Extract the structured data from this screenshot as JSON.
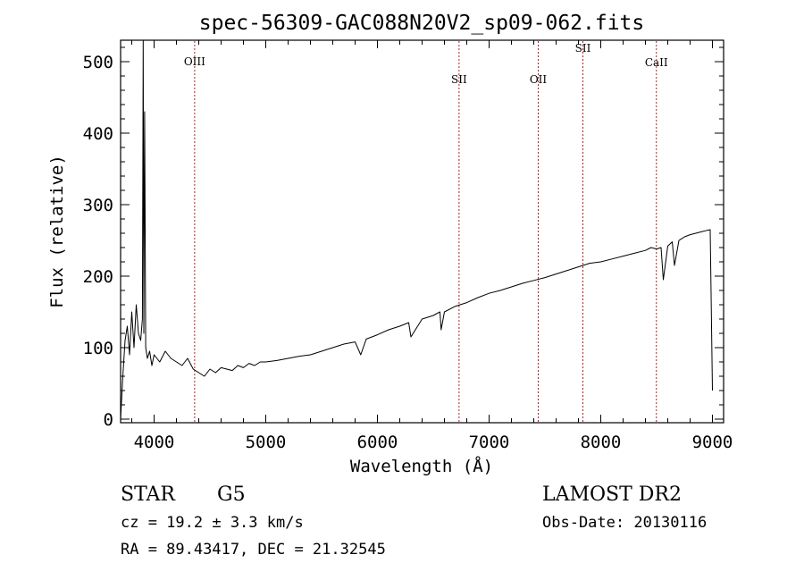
{
  "chart_data": {
    "type": "line",
    "title": "spec-56309-GAC088N20V2_sp09-062.fits",
    "xlabel": "Wavelength (Å)",
    "ylabel": "Flux (relative)",
    "xlim": [
      3700,
      9100
    ],
    "ylim": [
      -5,
      530
    ],
    "x_ticks": [
      4000,
      5000,
      6000,
      7000,
      8000,
      9000
    ],
    "x_tick_labels": [
      "4000",
      "5000",
      "6000",
      "7000",
      "8000",
      "9000"
    ],
    "y_ticks": [
      0,
      100,
      200,
      300,
      400,
      500
    ],
    "y_tick_labels": [
      "0",
      "100",
      "200",
      "300",
      "400",
      "500"
    ],
    "grid": false,
    "series": [
      {
        "x": [
          3700,
          3720,
          3740,
          3760,
          3780,
          3800,
          3820,
          3840,
          3860,
          3880,
          3895,
          3902,
          3908,
          3915,
          3925,
          3940,
          3960,
          3980,
          4000,
          4050,
          4100,
          4150,
          4200,
          4250,
          4300,
          4350,
          4400,
          4450,
          4500,
          4550,
          4600,
          4650,
          4700,
          4750,
          4800,
          4850,
          4900,
          4950,
          5000,
          5100,
          5200,
          5300,
          5400,
          5500,
          5600,
          5700,
          5800,
          5850,
          5900,
          5950,
          6000,
          6100,
          6200,
          6280,
          6300,
          6400,
          6500,
          6560,
          6570,
          6600,
          6700,
          6800,
          6900,
          7000,
          7100,
          7200,
          7300,
          7400,
          7500,
          7600,
          7700,
          7800,
          7900,
          8000,
          8100,
          8200,
          8300,
          8400,
          8450,
          8500,
          8540,
          8560,
          8600,
          8640,
          8660,
          8700,
          8750,
          8800,
          8850,
          8900,
          8950,
          8980,
          9000
        ],
        "y": [
          0,
          60,
          110,
          130,
          90,
          150,
          100,
          160,
          120,
          110,
          140,
          530,
          120,
          430,
          100,
          85,
          95,
          75,
          90,
          80,
          95,
          85,
          80,
          75,
          85,
          70,
          65,
          60,
          70,
          65,
          72,
          70,
          68,
          75,
          72,
          78,
          75,
          80,
          80,
          82,
          85,
          88,
          90,
          95,
          100,
          105,
          108,
          90,
          112,
          115,
          118,
          125,
          130,
          135,
          115,
          140,
          145,
          150,
          125,
          150,
          158,
          163,
          170,
          176,
          180,
          185,
          190,
          194,
          198,
          203,
          208,
          213,
          218,
          220,
          224,
          228,
          232,
          236,
          240,
          238,
          240,
          195,
          242,
          248,
          215,
          250,
          255,
          258,
          260,
          262,
          264,
          265,
          40
        ]
      }
    ],
    "annotations": [
      {
        "x": 4363,
        "label": "OIII"
      },
      {
        "x": 6731,
        "label": "SII"
      },
      {
        "x": 7440,
        "label": "OII"
      },
      {
        "x": 7840,
        "label": "SII"
      },
      {
        "x": 8498,
        "label": "CaII"
      }
    ]
  },
  "info": {
    "object_class": "STAR",
    "subclass": "G5",
    "survey": "LAMOST DR2",
    "redshift": "cz = 19.2 ± 3.3 km/s",
    "obs_date": "Obs-Date: 20130116",
    "coordinates": "RA =  89.43417, DEC =  21.32545"
  },
  "colors": {
    "spectrum": "#000000",
    "line_markers": "#b22222",
    "background": "#ffffff"
  }
}
